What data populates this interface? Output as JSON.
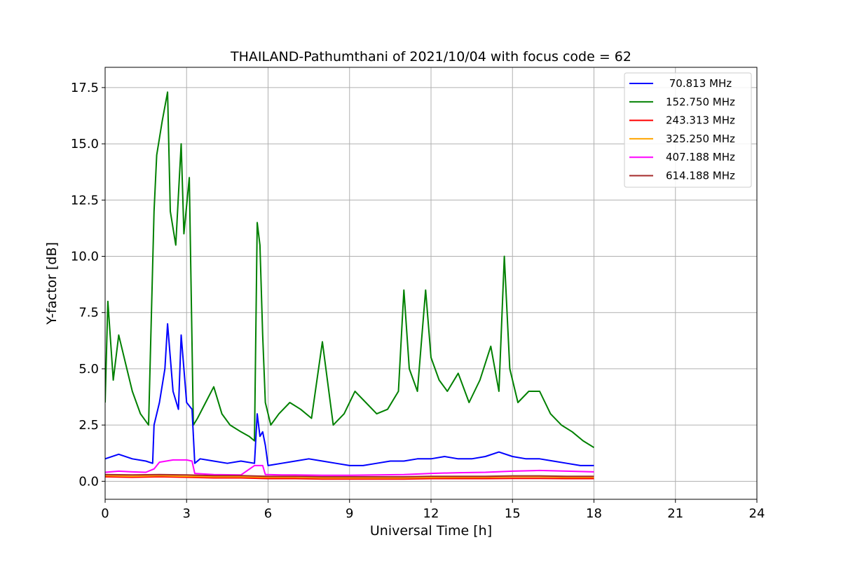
{
  "chart_data": {
    "type": "line",
    "title": "THAILAND-Pathumthani of 2021/10/04 with focus code = 62",
    "xlabel": "Universal Time [h]",
    "ylabel": "Y-factor [dB]",
    "xlim": [
      0,
      24
    ],
    "ylim": [
      -0.8,
      18.4
    ],
    "xticks": [
      0,
      3,
      6,
      9,
      12,
      15,
      18,
      21,
      24
    ],
    "xtick_labels": [
      "0",
      "3",
      "6",
      "9",
      "12",
      "15",
      "18",
      "21",
      "24"
    ],
    "yticks": [
      0,
      2.5,
      5,
      7.5,
      10,
      12.5,
      15,
      17.5
    ],
    "ytick_labels": [
      "0.0",
      "2.5",
      "5.0",
      "7.5",
      "10.0",
      "12.5",
      "15.0",
      "17.5"
    ],
    "grid": true,
    "legend_position": "top-right",
    "series": [
      {
        "name": " 70.813 MHz",
        "color": "#0000ff",
        "x": [
          0,
          0.5,
          1,
          1.5,
          1.75,
          1.8,
          2,
          2.2,
          2.3,
          2.5,
          2.7,
          2.8,
          3,
          3.2,
          3.3,
          3.5,
          4,
          4.5,
          5,
          5.5,
          5.6,
          5.7,
          5.8,
          5.9,
          6,
          6.5,
          7,
          7.5,
          8,
          8.5,
          9,
          9.5,
          10,
          10.5,
          11,
          11.5,
          12,
          12.5,
          13,
          13.5,
          14,
          14.5,
          15,
          15.5,
          16,
          16.5,
          17,
          17.5,
          18
        ],
        "y": [
          1.0,
          1.2,
          1.0,
          0.9,
          0.8,
          2.5,
          3.5,
          5.0,
          7.0,
          4.0,
          3.2,
          6.5,
          3.5,
          3.2,
          0.8,
          1.0,
          0.9,
          0.8,
          0.9,
          0.8,
          3.0,
          2.0,
          2.2,
          1.6,
          0.7,
          0.8,
          0.9,
          1.0,
          0.9,
          0.8,
          0.7,
          0.7,
          0.8,
          0.9,
          0.9,
          1.0,
          1.0,
          1.1,
          1.0,
          1.0,
          1.1,
          1.3,
          1.1,
          1.0,
          1.0,
          0.9,
          0.8,
          0.7,
          0.7
        ]
      },
      {
        "name": "152.750 MHz",
        "color": "#008000",
        "x": [
          0,
          0.1,
          0.3,
          0.5,
          0.8,
          1.0,
          1.3,
          1.6,
          1.8,
          1.9,
          2.1,
          2.3,
          2.4,
          2.6,
          2.8,
          2.9,
          3.1,
          3.25,
          3.4,
          3.7,
          4.0,
          4.3,
          4.6,
          5.0,
          5.3,
          5.5,
          5.6,
          5.7,
          5.8,
          5.9,
          6.1,
          6.4,
          6.8,
          7.2,
          7.6,
          8.0,
          8.4,
          8.8,
          9.2,
          9.6,
          10.0,
          10.4,
          10.8,
          11.0,
          11.2,
          11.5,
          11.8,
          12.0,
          12.3,
          12.6,
          13.0,
          13.4,
          13.8,
          14.2,
          14.5,
          14.7,
          14.9,
          15.2,
          15.6,
          16.0,
          16.4,
          16.8,
          17.2,
          17.6,
          18.0
        ],
        "y": [
          3.5,
          8.0,
          4.5,
          6.5,
          5.0,
          4.0,
          3.0,
          2.5,
          12.0,
          14.5,
          16.0,
          17.3,
          12.0,
          10.5,
          15.0,
          11.0,
          13.5,
          2.5,
          2.8,
          3.5,
          4.2,
          3.0,
          2.5,
          2.2,
          2.0,
          1.8,
          11.5,
          10.5,
          6.5,
          3.5,
          2.5,
          3.0,
          3.5,
          3.2,
          2.8,
          6.2,
          2.5,
          3.0,
          4.0,
          3.5,
          3.0,
          3.2,
          4.0,
          8.5,
          5.0,
          4.0,
          8.5,
          5.5,
          4.5,
          4.0,
          4.8,
          3.5,
          4.5,
          6.0,
          4.0,
          10.0,
          5.0,
          3.5,
          4.0,
          4.0,
          3.0,
          2.5,
          2.2,
          1.8,
          1.5
        ]
      },
      {
        "name": "243.313 MHz",
        "color": "#ff0000",
        "x": [
          0,
          1,
          2,
          3,
          4,
          5,
          6,
          7,
          8,
          9,
          10,
          11,
          12,
          13,
          14,
          15,
          16,
          17,
          18
        ],
        "y": [
          0.2,
          0.18,
          0.2,
          0.18,
          0.15,
          0.15,
          0.12,
          0.12,
          0.1,
          0.1,
          0.1,
          0.1,
          0.12,
          0.12,
          0.12,
          0.13,
          0.13,
          0.12,
          0.12
        ]
      },
      {
        "name": "325.250 MHz",
        "color": "#ffa500",
        "x": [
          0,
          1,
          2,
          3,
          4,
          5,
          6,
          7,
          8,
          9,
          10,
          11,
          12,
          13,
          14,
          15,
          16,
          17,
          18
        ],
        "y": [
          0.25,
          0.22,
          0.25,
          0.22,
          0.2,
          0.2,
          0.18,
          0.18,
          0.15,
          0.15,
          0.15,
          0.15,
          0.17,
          0.18,
          0.18,
          0.2,
          0.2,
          0.18,
          0.18
        ]
      },
      {
        "name": "407.188 MHz",
        "color": "#ff00ff",
        "x": [
          0,
          0.5,
          1,
          1.5,
          1.8,
          2.0,
          2.5,
          3.0,
          3.2,
          3.3,
          4,
          5,
          5.5,
          5.8,
          5.9,
          6.5,
          7,
          8,
          9,
          10,
          11,
          12,
          13,
          14,
          15,
          16,
          17,
          18
        ],
        "y": [
          0.4,
          0.45,
          0.42,
          0.4,
          0.55,
          0.85,
          0.95,
          0.95,
          0.9,
          0.35,
          0.3,
          0.28,
          0.7,
          0.7,
          0.3,
          0.28,
          0.28,
          0.27,
          0.27,
          0.28,
          0.3,
          0.35,
          0.38,
          0.4,
          0.45,
          0.48,
          0.45,
          0.42
        ]
      },
      {
        "name": "614.188 MHz",
        "color": "#a52a2a",
        "x": [
          0,
          1,
          2,
          3,
          4,
          5,
          6,
          7,
          8,
          9,
          10,
          11,
          12,
          13,
          14,
          15,
          16,
          17,
          18
        ],
        "y": [
          0.3,
          0.28,
          0.3,
          0.28,
          0.25,
          0.25,
          0.22,
          0.22,
          0.2,
          0.2,
          0.2,
          0.2,
          0.22,
          0.22,
          0.22,
          0.24,
          0.24,
          0.22,
          0.22
        ]
      }
    ]
  }
}
